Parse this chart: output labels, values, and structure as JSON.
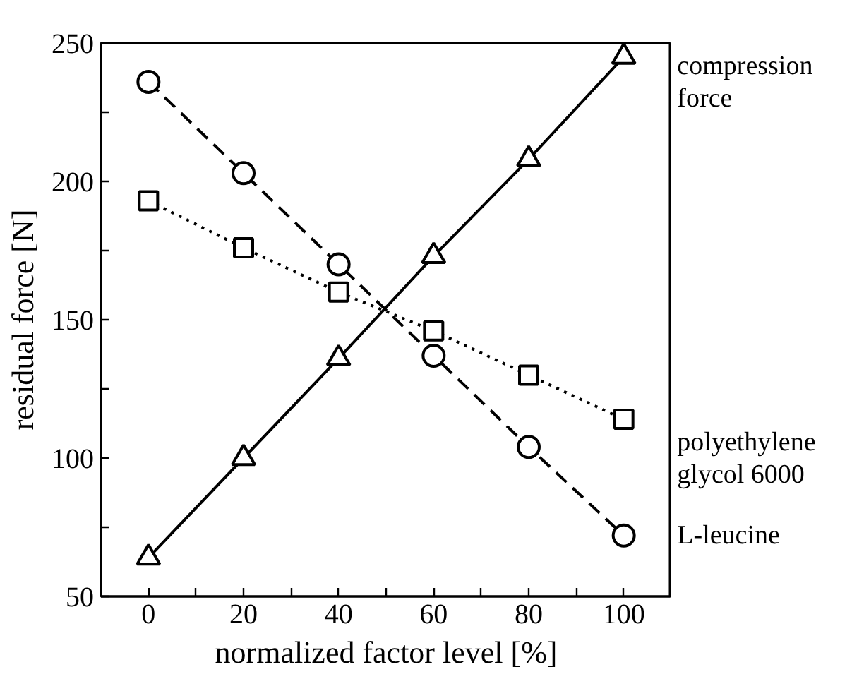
{
  "chart_data": {
    "type": "line",
    "xlabel": "normalized factor level [%]",
    "ylabel": "residual force [N]",
    "x": [
      0,
      20,
      40,
      60,
      80,
      100
    ],
    "xlim": [
      -10,
      110
    ],
    "ylim": [
      50,
      250
    ],
    "xticks": [
      0,
      {
        "value": 10,
        "label": null
      },
      20,
      {
        "value": 30,
        "label": null
      },
      40,
      {
        "value": 50,
        "label": null
      },
      60,
      {
        "value": 70,
        "label": null
      },
      80,
      {
        "value": 90,
        "label": null
      },
      100
    ],
    "yticks": [
      50,
      {
        "value": 75,
        "label": null
      },
      100,
      {
        "value": 125,
        "label": null
      },
      150,
      {
        "value": 175,
        "label": null
      },
      200,
      {
        "value": 225,
        "label": null
      },
      250
    ],
    "grid": false,
    "legend": false,
    "series": [
      {
        "name": "compression\nforce",
        "color": "#000000",
        "values": [
          64,
          100,
          136,
          173,
          208,
          245
        ],
        "marker": "triangle",
        "line_style": "solid"
      },
      {
        "name": "polyethylene\nglycol 6000",
        "color": "#000000",
        "values": [
          193,
          176,
          160,
          146,
          130,
          114
        ],
        "marker": "square",
        "line_style": "dotted"
      },
      {
        "name": "L-leucine",
        "color": "#000000",
        "values": [
          236,
          203,
          170,
          137,
          104,
          72
        ],
        "marker": "circle",
        "line_style": "dashed"
      }
    ]
  }
}
